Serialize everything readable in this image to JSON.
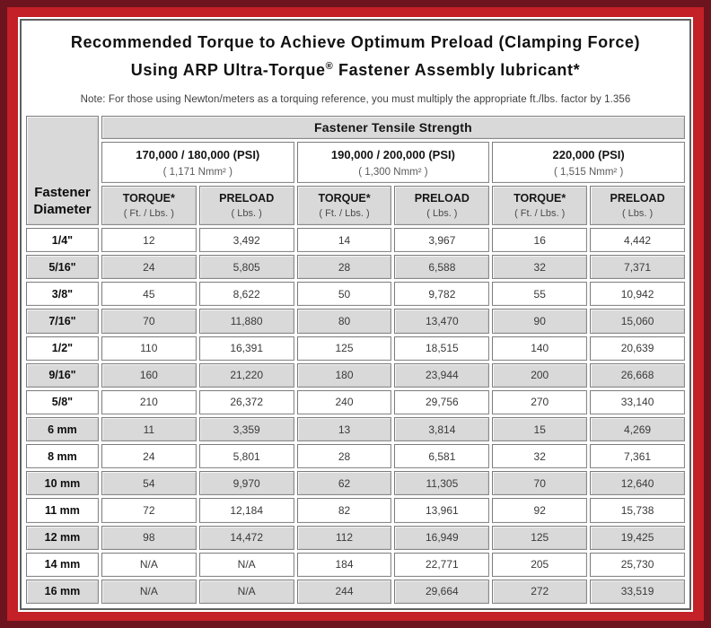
{
  "colors": {
    "frame_outer": "#6d141f",
    "frame_inner_red": "#c32127",
    "content_border": "#5f5f5f",
    "header_gray": "#d9d9d9",
    "cell_border": "#8a8a8a"
  },
  "title": {
    "line1": "Recommended Torque to Achieve Optimum Preload (Clamping Force)",
    "line2_pre": "Using ARP Ultra-Torque",
    "line2_reg": "®",
    "line2_post": " Fastener Assembly lubricant*",
    "note": "Note: For those using Newton/meters as a torquing reference, you must multiply the appropriate ft./lbs. factor by 1.356"
  },
  "table": {
    "corner_label": "Fastener Diameter",
    "tensile_header": "Fastener Tensile Strength",
    "strength_groups": [
      {
        "psi": "170,000 / 180,000 (PSI)",
        "nmm": "( 1,171 Nmm² )"
      },
      {
        "psi": "190,000 / 200,000 (PSI)",
        "nmm": "( 1,300 Nmm² )"
      },
      {
        "psi": "220,000 (PSI)",
        "nmm": "( 1,515 Nmm² )"
      }
    ],
    "sub_headers": {
      "torque_label": "TORQUE*",
      "torque_unit": "( Ft. / Lbs. )",
      "preload_label": "PRELOAD",
      "preload_unit": "( Lbs. )"
    },
    "rows": [
      {
        "diameter": "1/4\"",
        "values": [
          "12",
          "3,492",
          "14",
          "3,967",
          "16",
          "4,442"
        ]
      },
      {
        "diameter": "5/16\"",
        "values": [
          "24",
          "5,805",
          "28",
          "6,588",
          "32",
          "7,371"
        ]
      },
      {
        "diameter": "3/8\"",
        "values": [
          "45",
          "8,622",
          "50",
          "9,782",
          "55",
          "10,942"
        ]
      },
      {
        "diameter": "7/16\"",
        "values": [
          "70",
          "11,880",
          "80",
          "13,470",
          "90",
          "15,060"
        ]
      },
      {
        "diameter": "1/2\"",
        "values": [
          "110",
          "16,391",
          "125",
          "18,515",
          "140",
          "20,639"
        ]
      },
      {
        "diameter": "9/16\"",
        "values": [
          "160",
          "21,220",
          "180",
          "23,944",
          "200",
          "26,668"
        ]
      },
      {
        "diameter": "5/8\"",
        "values": [
          "210",
          "26,372",
          "240",
          "29,756",
          "270",
          "33,140"
        ]
      },
      {
        "diameter": "6 mm",
        "values": [
          "11",
          "3,359",
          "13",
          "3,814",
          "15",
          "4,269"
        ]
      },
      {
        "diameter": "8 mm",
        "values": [
          "24",
          "5,801",
          "28",
          "6,581",
          "32",
          "7,361"
        ]
      },
      {
        "diameter": "10 mm",
        "values": [
          "54",
          "9,970",
          "62",
          "11,305",
          "70",
          "12,640"
        ]
      },
      {
        "diameter": "11 mm",
        "values": [
          "72",
          "12,184",
          "82",
          "13,961",
          "92",
          "15,738"
        ]
      },
      {
        "diameter": "12 mm",
        "values": [
          "98",
          "14,472",
          "112",
          "16,949",
          "125",
          "19,425"
        ]
      },
      {
        "diameter": "14 mm",
        "values": [
          "N/A",
          "N/A",
          "184",
          "22,771",
          "205",
          "25,730"
        ]
      },
      {
        "diameter": "16 mm",
        "values": [
          "N/A",
          "N/A",
          "244",
          "29,664",
          "272",
          "33,519"
        ]
      }
    ]
  }
}
